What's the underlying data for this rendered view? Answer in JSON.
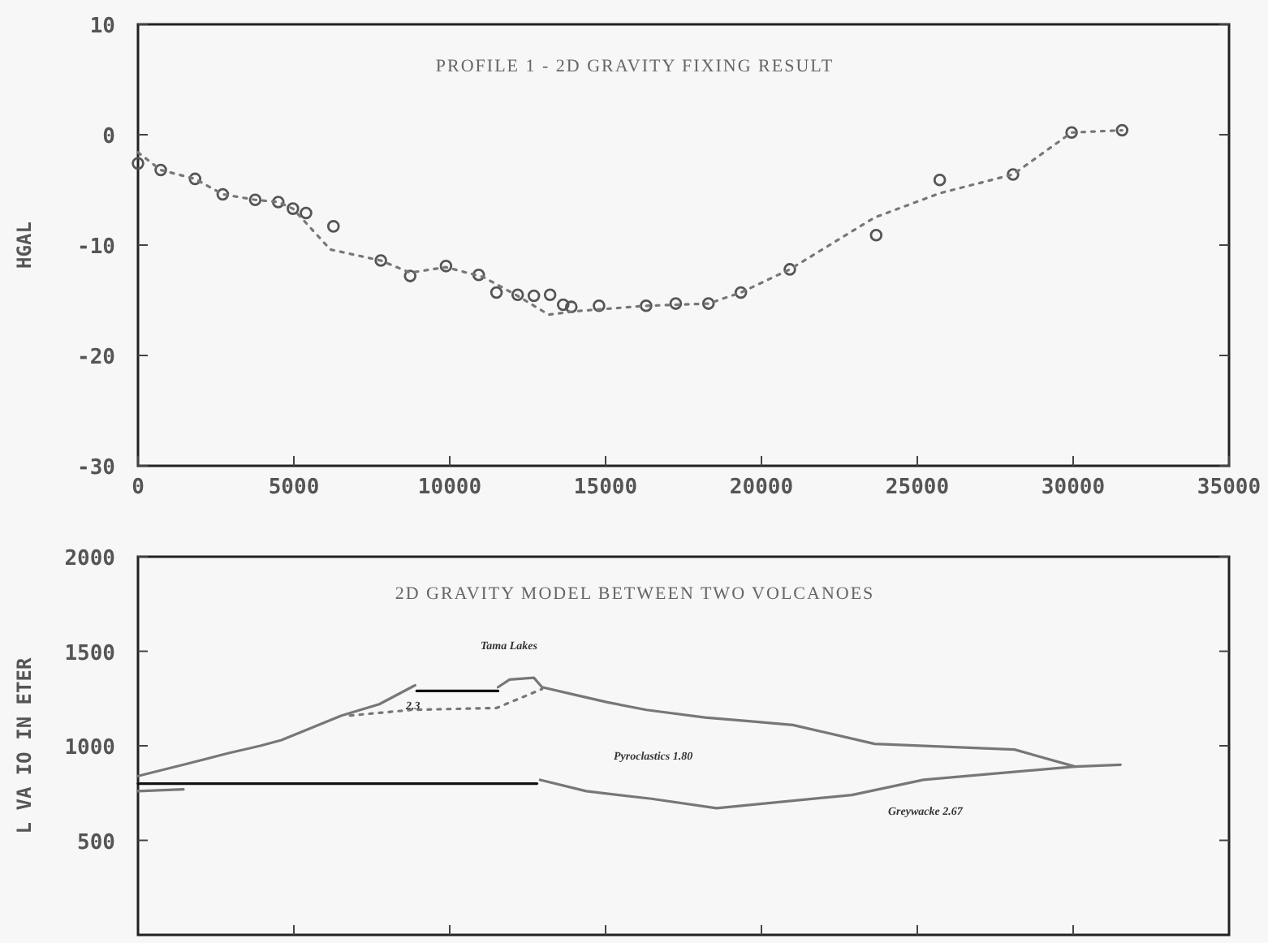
{
  "chart_data": [
    {
      "type": "scatter",
      "title": "PROFILE 1 - 2D GRAVITY FIXING RESULT",
      "ylabel": "HGAL",
      "xlim": [
        0,
        35000
      ],
      "ylim": [
        -30,
        10
      ],
      "xticks": [
        0,
        5000,
        10000,
        15000,
        20000,
        25000,
        30000,
        35000
      ],
      "yticks": [
        -30,
        -20,
        -10,
        0,
        10
      ],
      "grid": false,
      "series": [
        {
          "color": "#555555",
          "marker": "circle",
          "x": [
            0,
            730,
            1830,
            2720,
            3760,
            4500,
            4970,
            5390,
            6270,
            7790,
            8730,
            9880,
            10930,
            11500,
            12180,
            12700,
            13220,
            13640,
            13900,
            14790,
            16300,
            17250,
            18300,
            19340,
            20910,
            23680,
            25720,
            28070,
            29950,
            31570
          ],
          "values": [
            -2.6,
            -3.2,
            -4.0,
            -5.4,
            -5.9,
            -6.1,
            -6.7,
            -7.1,
            -8.3,
            -11.4,
            -12.8,
            -11.9,
            -12.7,
            -14.3,
            -14.5,
            -14.6,
            -14.5,
            -15.4,
            -15.6,
            -15.5,
            -15.5,
            -15.3,
            -15.3,
            -14.3,
            -12.2,
            -9.1,
            -4.1,
            -3.6,
            0.2,
            0.4
          ]
        },
        {
          "type": "line",
          "color": "#777777",
          "line_style": "dotted",
          "marker": "none",
          "x": [
            0,
            730,
            1830,
            2720,
            3760,
            4500,
            4970,
            6170,
            7790,
            8730,
            9880,
            11080,
            12180,
            13170,
            14010,
            16300,
            18300,
            19340,
            20910,
            23630,
            25720,
            28070,
            29950,
            31570
          ],
          "values": [
            -1.6,
            -3.2,
            -4.0,
            -5.4,
            -5.9,
            -6.1,
            -6.7,
            -10.4,
            -11.4,
            -12.5,
            -12.0,
            -12.9,
            -14.6,
            -16.3,
            -16.0,
            -15.5,
            -15.3,
            -14.3,
            -12.2,
            -7.5,
            -5.3,
            -3.6,
            0.2,
            0.4
          ]
        }
      ]
    },
    {
      "type": "line",
      "title": "2D GRAVITY MODEL BETWEEN TWO VOLCANOES",
      "ylabel": "L VA IO IN ETER",
      "xlim": [
        0,
        35000
      ],
      "ylim": [
        0,
        2000
      ],
      "xticks": [
        {
          "value": 5000,
          "label": null
        },
        {
          "value": 10000,
          "label": null
        },
        {
          "value": 15000,
          "label": null
        },
        {
          "value": 20000,
          "label": null
        },
        {
          "value": 25000,
          "label": null
        },
        {
          "value": 30000,
          "label": null
        }
      ],
      "yticks": [
        500,
        1000,
        1500,
        2000
      ],
      "tick_labels": "y",
      "grid": false,
      "annotations": [
        "Tama Lakes",
        "2.3",
        "Pyroclastics 1.80",
        "Greywacke 2.67"
      ],
      "series": [
        {
          "color": "#777777",
          "line_style": "solid",
          "x": [
            0,
            1460,
            2880,
            3920,
            4600,
            6530,
            7740,
            8890
          ],
          "values": [
            840,
            900,
            960,
            1000,
            1030,
            1160,
            1220,
            1320
          ]
        },
        {
          "color": "#111111",
          "line_style": "solid",
          "x": [
            8940,
            11550
          ],
          "values": [
            1290,
            1290
          ]
        },
        {
          "color": "#777777",
          "line_style": "solid",
          "x": [
            11550,
            11920,
            12700,
            12960,
            14010,
            15060,
            16310,
            18190,
            19600,
            21010,
            23630,
            28120,
            30060
          ],
          "values": [
            1310,
            1350,
            1360,
            1310,
            1270,
            1230,
            1190,
            1150,
            1130,
            1110,
            1010,
            980,
            890
          ]
        },
        {
          "color": "#777777",
          "line_style": "dotted",
          "x": [
            6800,
            8780,
            11500,
            12960
          ],
          "values": [
            1160,
            1190,
            1200,
            1300
          ]
        },
        {
          "color": "#111111",
          "line_style": "solid",
          "x": [
            0,
            12800
          ],
          "values": [
            800,
            800
          ]
        },
        {
          "color": "#777777",
          "line_style": "solid",
          "x": [
            0,
            1460
          ],
          "values": [
            760,
            770
          ]
        },
        {
          "color": "#777777",
          "line_style": "solid",
          "x": [
            12900,
            14380,
            16470,
            18560,
            22900,
            25200,
            30060,
            31520
          ],
          "values": [
            820,
            760,
            720,
            670,
            740,
            820,
            890,
            900
          ]
        }
      ]
    }
  ]
}
